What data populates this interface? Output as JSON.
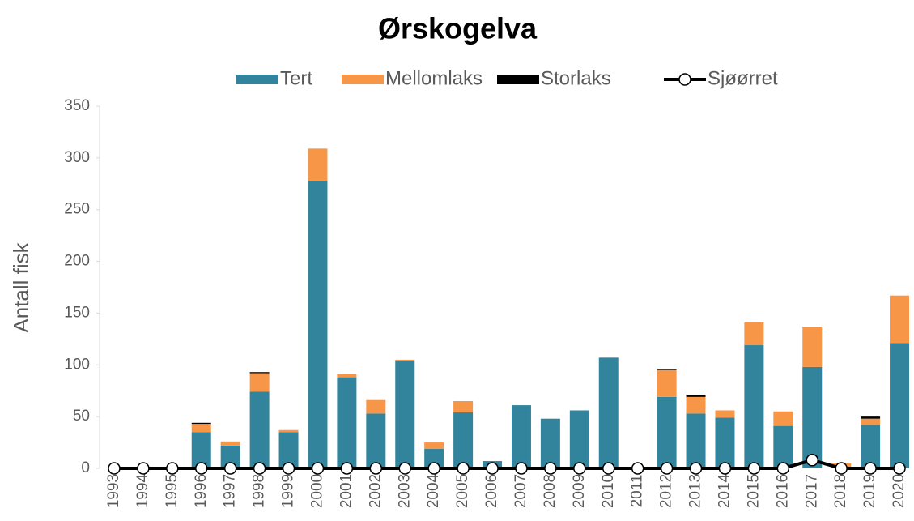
{
  "chart_data": {
    "type": "bar-line",
    "title": "Ørskogelva",
    "y_label": "Antall fisk",
    "categories": [
      "1993",
      "1994",
      "1995",
      "1996",
      "1997",
      "1998",
      "1999",
      "2000",
      "2001",
      "2002",
      "2003",
      "2004",
      "2005",
      "2006",
      "2007",
      "2008",
      "2009",
      "2010",
      "2011",
      "2012",
      "2013",
      "2014",
      "2015",
      "2016",
      "2017",
      "2018",
      "2019",
      "2020"
    ],
    "series": [
      {
        "name": "Tert",
        "color": "#31849b",
        "kind": "bar",
        "values": [
          0,
          0,
          0,
          35,
          22,
          74,
          35,
          278,
          88,
          53,
          104,
          19,
          54,
          7,
          61,
          48,
          56,
          107,
          0,
          69,
          53,
          49,
          119,
          41,
          98,
          1,
          42,
          121
        ]
      },
      {
        "name": "Mellomlaks",
        "color": "#f79646",
        "kind": "bar",
        "values": [
          0,
          0,
          0,
          8,
          4,
          18,
          2,
          31,
          3,
          13,
          1,
          6,
          11,
          0,
          0,
          0,
          0,
          0,
          0,
          26,
          16,
          7,
          22,
          14,
          39,
          4,
          6,
          46
        ]
      },
      {
        "name": "Storlaks",
        "color": "#000000",
        "kind": "bar",
        "values": [
          0,
          0,
          0,
          1,
          0,
          1,
          0,
          0,
          0,
          0,
          0,
          0,
          0,
          0,
          0,
          0,
          0,
          0,
          0,
          1,
          2,
          0,
          0,
          0,
          0,
          0,
          2,
          0
        ]
      },
      {
        "name": "Sjøørret",
        "color": "#000000",
        "kind": "line",
        "values": [
          0,
          0,
          0,
          0,
          0,
          0,
          0,
          0,
          0,
          0,
          0,
          0,
          0,
          0,
          0,
          0,
          0,
          0,
          0,
          0,
          0,
          0,
          0,
          0,
          8,
          0,
          0,
          0
        ]
      }
    ],
    "ylim": [
      0,
      350
    ],
    "yticks": [
      0,
      50,
      100,
      150,
      200,
      250,
      300,
      350
    ],
    "legend": "top"
  }
}
